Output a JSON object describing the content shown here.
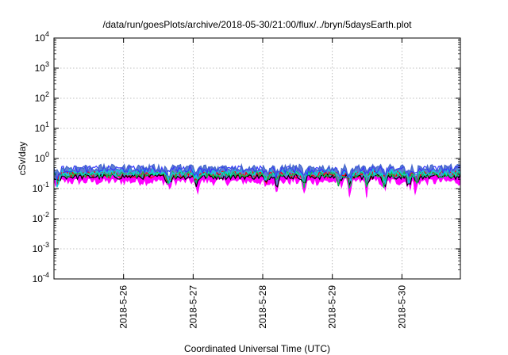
{
  "chart_data": {
    "type": "line",
    "title": "/data/run/goesPlots/archive/2018-05-30/21:00/flux/../bryn/5daysEarth.plot",
    "xlabel": "Coordinated Universal Time (UTC)",
    "ylabel": "cSv/day",
    "yscale": "log",
    "ylim": [
      0.0001,
      10000
    ],
    "xlim": [
      0,
      5.84
    ],
    "grid": true,
    "x_ticks": [
      {
        "label": "2018-5-26",
        "value": 1
      },
      {
        "label": "2018-5-27",
        "value": 2
      },
      {
        "label": "2018-5-28",
        "value": 3
      },
      {
        "label": "2018-5-29",
        "value": 4
      },
      {
        "label": "2018-5-30",
        "value": 5
      }
    ],
    "y_ticks": [
      {
        "base": "10",
        "exp": "-4",
        "value": 0.0001
      },
      {
        "base": "10",
        "exp": "-3",
        "value": 0.001
      },
      {
        "base": "10",
        "exp": "-2",
        "value": 0.01
      },
      {
        "base": "10",
        "exp": "-1",
        "value": 0.1
      },
      {
        "base": "10",
        "exp": "0",
        "value": 1
      },
      {
        "base": "10",
        "exp": "1",
        "value": 10
      },
      {
        "base": "10",
        "exp": "2",
        "value": 100
      },
      {
        "base": "10",
        "exp": "3",
        "value": 1000
      },
      {
        "base": "10",
        "exp": "4",
        "value": 10000
      }
    ],
    "series": [
      {
        "color": "#ff00ff",
        "base": 0.2,
        "amp": 0.06,
        "dips": 0.08,
        "fill": true
      },
      {
        "color": "#ff0000",
        "base": 0.3,
        "amp": 0.08,
        "dips": 0.15
      },
      {
        "color": "#000000",
        "base": 0.25,
        "amp": 0.05,
        "dips": 0.1
      },
      {
        "color": "#00cc44",
        "base": 0.3,
        "amp": 0.07,
        "dips": 0.12
      },
      {
        "color": "#00dddd",
        "base": 0.35,
        "amp": 0.08,
        "dips": 0.14
      },
      {
        "color": "#3333ff",
        "base": 0.45,
        "amp": 0.12,
        "dips": 0.2
      },
      {
        "color": "#4466cc",
        "base": 0.5,
        "amp": 0.14,
        "dips": 0.22,
        "fill": true
      }
    ]
  }
}
